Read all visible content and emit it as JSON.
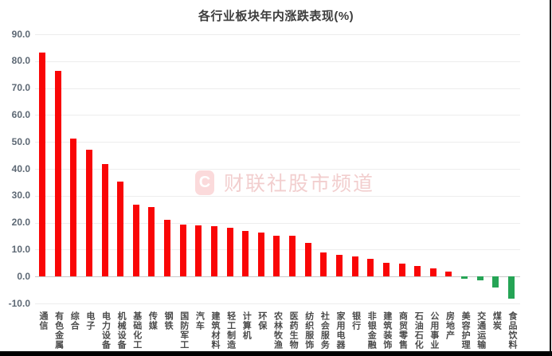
{
  "chart_data": {
    "type": "bar",
    "title": "各行业板块年内涨跌表现(%)",
    "categories": [
      "通信",
      "有色金属",
      "综合",
      "电子",
      "电力设备",
      "机械设备",
      "基础化工",
      "传媒",
      "钢铁",
      "国防军工",
      "汽车",
      "建筑材料",
      "轻工制造",
      "计算机",
      "环保",
      "农林牧渔",
      "医药生物",
      "纺织服饰",
      "社会服务",
      "家用电器",
      "银行",
      "非银金融",
      "建筑装饰",
      "商贸零售",
      "石油石化",
      "公用事业",
      "房地产",
      "美容护理",
      "交通运输",
      "煤炭",
      "食品饮料"
    ],
    "values": [
      83.2,
      76.5,
      51.3,
      47.2,
      41.8,
      35.2,
      26.6,
      25.9,
      21.1,
      19.2,
      18.9,
      18.6,
      18.0,
      17.0,
      16.4,
      15.2,
      15.1,
      12.4,
      8.9,
      8.0,
      7.6,
      6.6,
      5.2,
      4.9,
      3.9,
      2.9,
      1.9,
      -0.7,
      -1.5,
      -4.2,
      -8.2
    ],
    "xlabel": "",
    "ylabel": "",
    "ylim": [
      -10,
      90
    ],
    "y_ticks": [
      "90.0",
      "80.0",
      "70.0",
      "60.0",
      "50.0",
      "40.0",
      "30.0",
      "20.0",
      "10.0",
      "0.0",
      "-10.0"
    ],
    "grid": true,
    "legend": "none",
    "positive_color": "#f90606",
    "negative_color": "#25a455",
    "watermark": {
      "logo_letter": "C",
      "text": "财联社股市频道"
    }
  }
}
